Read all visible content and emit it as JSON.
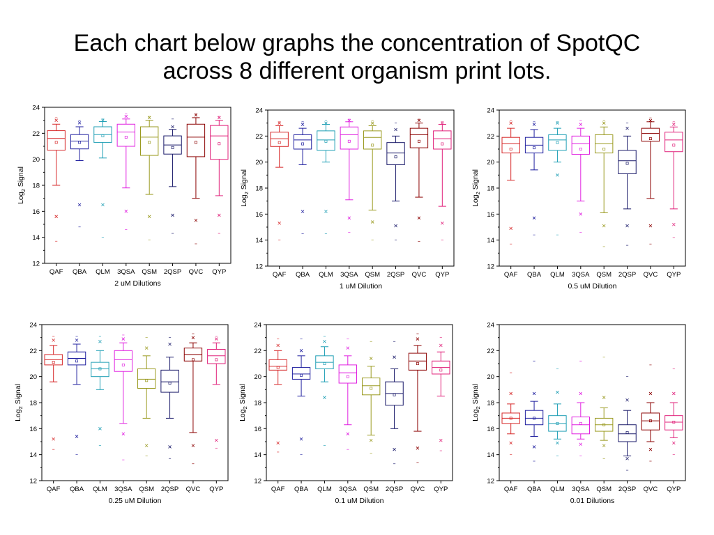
{
  "slide": {
    "title_line1": "Each chart below graphs the concentration of SpotQC",
    "title_line2": "across 8 different organism print lots."
  },
  "colors": {
    "QAF": "#d62728",
    "QBA": "#1f1f9f",
    "QLM": "#1f9fb5",
    "3QSA": "#e020e0",
    "QSM": "#9a9a20",
    "2QSP": "#1a1a6a",
    "QVC": "#8b0000",
    "QYP": "#e0207a"
  },
  "chart_data": [
    {
      "type": "box",
      "xlabel": "2 uM Dilutions",
      "ylabel": "Log2 Signal",
      "ylabel_main": "Log",
      "ylabel_sub": "2",
      "ylabel_tail": " Signal",
      "ylim": [
        12,
        24
      ],
      "yticks": [
        "12",
        "14",
        "16",
        "18",
        "20",
        "22",
        "24"
      ],
      "categories": [
        "QAF",
        "QBA",
        "QLM",
        "3QSA",
        "QSM",
        "2QSP",
        "QVC",
        "QYP"
      ],
      "boxes": [
        {
          "min": 18.0,
          "q1": 20.7,
          "median": 21.6,
          "q3": 22.2,
          "max": 22.7,
          "mean": 21.3,
          "outliers": [
            15.6,
            23.0
          ],
          "extremes": [
            13.7,
            23.2
          ]
        },
        {
          "min": 19.9,
          "q1": 20.8,
          "median": 21.4,
          "q3": 21.9,
          "max": 22.5,
          "mean": 21.3,
          "outliers": [
            16.5,
            22.8
          ],
          "extremes": [
            14.8,
            23.0
          ]
        },
        {
          "min": 20.1,
          "q1": 21.3,
          "median": 21.9,
          "q3": 22.5,
          "max": 22.9,
          "mean": 21.8,
          "outliers": [
            16.5,
            23.0
          ],
          "extremes": [
            14.0,
            23.1
          ]
        },
        {
          "min": 17.8,
          "q1": 21.0,
          "median": 22.1,
          "q3": 22.7,
          "max": 23.1,
          "mean": 21.7,
          "outliers": [
            16.0,
            23.3
          ],
          "extremes": [
            14.6,
            23.5
          ]
        },
        {
          "min": 17.3,
          "q1": 20.3,
          "median": 21.7,
          "q3": 22.5,
          "max": 23.0,
          "mean": 21.3,
          "outliers": [
            15.6,
            23.2
          ],
          "extremes": [
            13.8,
            23.3
          ]
        },
        {
          "min": 17.9,
          "q1": 20.4,
          "median": 21.1,
          "q3": 21.8,
          "max": 22.3,
          "mean": 20.9,
          "outliers": [
            15.7,
            22.5
          ],
          "extremes": [
            14.3,
            23.1
          ]
        },
        {
          "min": 17.0,
          "q1": 20.2,
          "median": 21.7,
          "q3": 22.7,
          "max": 23.2,
          "mean": 21.3,
          "outliers": [
            15.3,
            23.4
          ],
          "extremes": [
            13.5,
            23.5
          ]
        },
        {
          "min": 17.2,
          "q1": 20.0,
          "median": 21.8,
          "q3": 22.6,
          "max": 23.0,
          "mean": 21.2,
          "outliers": [
            15.7,
            23.2
          ],
          "extremes": [
            14.3,
            23.3
          ]
        }
      ]
    },
    {
      "type": "box",
      "xlabel": "1 uM Dilution",
      "ylabel": "Log2 Signal",
      "ylabel_main": "Log",
      "ylabel_sub": "2",
      "ylabel_tail": " Signal",
      "ylim": [
        12,
        24
      ],
      "yticks": [
        "12",
        "14",
        "16",
        "18",
        "20",
        "22",
        "24"
      ],
      "categories": [
        "QAF",
        "QBA",
        "QLM",
        "3QSA",
        "QSM",
        "2QSP",
        "QVC",
        "QYP"
      ],
      "boxes": [
        {
          "min": 19.6,
          "q1": 21.2,
          "median": 21.8,
          "q3": 22.3,
          "max": 22.8,
          "mean": 21.5,
          "outliers": [
            15.3,
            23.0
          ],
          "extremes": [
            14.0,
            23.1
          ]
        },
        {
          "min": 19.8,
          "q1": 21.0,
          "median": 21.7,
          "q3": 22.1,
          "max": 22.6,
          "mean": 21.4,
          "outliers": [
            16.2,
            22.9
          ],
          "extremes": [
            14.5,
            23.1
          ]
        },
        {
          "min": 20.0,
          "q1": 20.9,
          "median": 21.7,
          "q3": 22.4,
          "max": 22.9,
          "mean": 21.6,
          "outliers": [
            16.2,
            23.0
          ],
          "extremes": [
            14.5,
            23.2
          ]
        },
        {
          "min": 17.1,
          "q1": 21.0,
          "median": 22.1,
          "q3": 22.7,
          "max": 23.1,
          "mean": 21.6,
          "outliers": [
            15.7,
            23.2
          ],
          "extremes": [
            14.6,
            23.3
          ]
        },
        {
          "min": 16.3,
          "q1": 21.0,
          "median": 21.9,
          "q3": 22.4,
          "max": 22.8,
          "mean": 21.3,
          "outliers": [
            15.4,
            23.0
          ],
          "extremes": [
            14.0,
            23.2
          ]
        },
        {
          "min": 17.0,
          "q1": 19.8,
          "median": 20.7,
          "q3": 21.5,
          "max": 22.0,
          "mean": 20.4,
          "outliers": [
            15.1,
            22.5
          ],
          "extremes": [
            14.0,
            23.0
          ]
        },
        {
          "min": 17.3,
          "q1": 21.1,
          "median": 22.1,
          "q3": 22.6,
          "max": 23.0,
          "mean": 21.6,
          "outliers": [
            15.7,
            23.2
          ],
          "extremes": [
            13.9,
            23.3
          ]
        },
        {
          "min": 16.6,
          "q1": 21.0,
          "median": 21.8,
          "q3": 22.4,
          "max": 22.9,
          "mean": 21.4,
          "outliers": [
            15.3,
            23.0
          ],
          "extremes": [
            14.0,
            23.1
          ]
        }
      ]
    },
    {
      "type": "box",
      "xlabel": "0.5 uM Dilution",
      "ylabel": "Log2 Signal",
      "ylabel_main": "Log",
      "ylabel_sub": "2",
      "ylabel_tail": " Signal",
      "ylim": [
        12,
        24
      ],
      "yticks": [
        "12",
        "14",
        "16",
        "18",
        "20",
        "22",
        "24"
      ],
      "categories": [
        "QAF",
        "QBA",
        "QLM",
        "3QSA",
        "QSM",
        "2QSP",
        "QVC",
        "QYP"
      ],
      "boxes": [
        {
          "min": 18.6,
          "q1": 20.7,
          "median": 21.4,
          "q3": 21.9,
          "max": 22.6,
          "mean": 21.0,
          "outliers": [
            14.9,
            23.0
          ],
          "extremes": [
            13.7,
            23.2
          ]
        },
        {
          "min": 19.4,
          "q1": 20.7,
          "median": 21.3,
          "q3": 21.9,
          "max": 22.5,
          "mean": 21.1,
          "outliers": [
            15.7,
            22.9
          ],
          "extremes": [
            14.4,
            23.1
          ]
        },
        {
          "min": 20.0,
          "q1": 20.9,
          "median": 21.7,
          "q3": 22.1,
          "max": 22.6,
          "mean": 21.5,
          "outliers": [
            19.0,
            23.0
          ],
          "extremes": [
            14.4,
            23.1
          ]
        },
        {
          "min": 17.0,
          "q1": 20.6,
          "median": 21.4,
          "q3": 22.0,
          "max": 22.6,
          "mean": 21.0,
          "outliers": [
            16.0,
            22.9
          ],
          "extremes": [
            14.6,
            23.2
          ]
        },
        {
          "min": 16.1,
          "q1": 20.7,
          "median": 21.4,
          "q3": 22.1,
          "max": 22.7,
          "mean": 21.0,
          "outliers": [
            15.1,
            23.0
          ],
          "extremes": [
            13.5,
            23.2
          ]
        },
        {
          "min": 16.4,
          "q1": 19.1,
          "median": 20.1,
          "q3": 20.9,
          "max": 22.0,
          "mean": 19.9,
          "outliers": [
            15.1,
            22.6
          ],
          "extremes": [
            13.6,
            23.0
          ]
        },
        {
          "min": 17.2,
          "q1": 21.6,
          "median": 22.2,
          "q3": 22.6,
          "max": 23.1,
          "mean": 21.8,
          "outliers": [
            15.1,
            23.2
          ],
          "extremes": [
            13.7,
            23.4
          ]
        },
        {
          "min": 16.4,
          "q1": 20.8,
          "median": 21.7,
          "q3": 22.3,
          "max": 22.7,
          "mean": 21.3,
          "outliers": [
            15.2,
            22.9
          ],
          "extremes": [
            14.2,
            23.1
          ]
        }
      ]
    },
    {
      "type": "box",
      "xlabel": "0.25 uM Dilution",
      "ylabel": "Log2 Signal",
      "ylabel_main": "Log",
      "ylabel_sub": "2",
      "ylabel_tail": " Signal",
      "ylim": [
        12,
        24
      ],
      "yticks": [
        "12",
        "14",
        "16",
        "18",
        "20",
        "22",
        "24"
      ],
      "categories": [
        "QAF",
        "QBA",
        "QLM",
        "3QSA",
        "QSM",
        "2QSP",
        "QVC",
        "QYP"
      ],
      "boxes": [
        {
          "min": 19.6,
          "q1": 20.9,
          "median": 21.3,
          "q3": 21.7,
          "max": 22.4,
          "mean": 21.1,
          "outliers": [
            15.2,
            22.8
          ],
          "extremes": [
            14.4,
            23.1
          ]
        },
        {
          "min": 19.4,
          "q1": 20.9,
          "median": 21.4,
          "q3": 21.9,
          "max": 22.5,
          "mean": 21.2,
          "outliers": [
            15.4,
            22.8
          ],
          "extremes": [
            14.0,
            23.1
          ]
        },
        {
          "min": 19.0,
          "q1": 20.0,
          "median": 20.6,
          "q3": 21.1,
          "max": 22.0,
          "mean": 20.6,
          "outliers": [
            16.0,
            22.7
          ],
          "extremes": [
            14.7,
            23.1
          ]
        },
        {
          "min": 16.4,
          "q1": 20.4,
          "median": 21.3,
          "q3": 22.0,
          "max": 22.6,
          "mean": 20.9,
          "outliers": [
            15.6,
            22.9
          ],
          "extremes": [
            13.6,
            23.2
          ]
        },
        {
          "min": 16.8,
          "q1": 19.1,
          "median": 19.8,
          "q3": 20.6,
          "max": 21.6,
          "mean": 19.7,
          "outliers": [
            14.7,
            22.2
          ],
          "extremes": [
            13.9,
            23.0
          ]
        },
        {
          "min": 16.8,
          "q1": 18.8,
          "median": 19.6,
          "q3": 20.5,
          "max": 21.5,
          "mean": 19.5,
          "outliers": [
            14.6,
            22.5
          ],
          "extremes": [
            13.7,
            23.0
          ]
        },
        {
          "min": 15.7,
          "q1": 21.2,
          "median": 21.7,
          "q3": 22.2,
          "max": 22.6,
          "mean": 21.3,
          "outliers": [
            14.7,
            23.0
          ],
          "extremes": [
            13.3,
            23.3
          ]
        },
        {
          "min": 19.4,
          "q1": 21.0,
          "median": 21.6,
          "q3": 22.1,
          "max": 22.6,
          "mean": 21.3,
          "outliers": [
            15.1,
            22.9
          ],
          "extremes": [
            14.5,
            23.1
          ]
        }
      ]
    },
    {
      "type": "box",
      "xlabel": "0.1 uM Dilution",
      "ylabel": "Log2 Signal",
      "ylabel_main": "Log",
      "ylabel_sub": "2",
      "ylabel_tail": " Signal",
      "ylim": [
        12,
        24
      ],
      "yticks": [
        "12",
        "14",
        "16",
        "18",
        "20",
        "22",
        "24"
      ],
      "categories": [
        "QAF",
        "QBA",
        "QLM",
        "3QSA",
        "QSM",
        "2QSP",
        "QVC",
        "QYP"
      ],
      "boxes": [
        {
          "min": 19.4,
          "q1": 20.5,
          "median": 20.8,
          "q3": 21.3,
          "max": 22.0,
          "mean": 20.7,
          "outliers": [
            14.9,
            22.4
          ],
          "extremes": [
            14.2,
            22.9
          ]
        },
        {
          "min": 18.5,
          "q1": 19.8,
          "median": 20.2,
          "q3": 20.7,
          "max": 21.6,
          "mean": 20.1,
          "outliers": [
            15.2,
            22.0
          ],
          "extremes": [
            14.0,
            22.9
          ]
        },
        {
          "min": 19.6,
          "q1": 20.6,
          "median": 21.1,
          "q3": 21.6,
          "max": 22.3,
          "mean": 21.0,
          "outliers": [
            18.4,
            22.7
          ],
          "extremes": [
            14.7,
            23.1
          ]
        },
        {
          "min": 16.3,
          "q1": 19.5,
          "median": 20.3,
          "q3": 20.9,
          "max": 21.6,
          "mean": 20.0,
          "outliers": [
            15.6,
            22.2
          ],
          "extremes": [
            14.4,
            22.9
          ]
        },
        {
          "min": 15.5,
          "q1": 18.6,
          "median": 19.3,
          "q3": 19.9,
          "max": 20.8,
          "mean": 19.1,
          "outliers": [
            15.1,
            21.4
          ],
          "extremes": [
            14.1,
            22.7
          ]
        },
        {
          "min": 16.0,
          "q1": 17.8,
          "median": 18.7,
          "q3": 19.6,
          "max": 20.6,
          "mean": 18.6,
          "outliers": [
            14.4,
            21.5
          ],
          "extremes": [
            13.3,
            22.7
          ]
        },
        {
          "min": 15.8,
          "q1": 20.5,
          "median": 21.2,
          "q3": 21.8,
          "max": 22.4,
          "mean": 21.0,
          "outliers": [
            14.5,
            22.9
          ],
          "extremes": [
            13.4,
            23.3
          ]
        },
        {
          "min": 18.5,
          "q1": 20.2,
          "median": 20.7,
          "q3": 21.2,
          "max": 21.9,
          "mean": 20.5,
          "outliers": [
            15.1,
            22.4
          ],
          "extremes": [
            14.3,
            23.0
          ]
        }
      ]
    },
    {
      "type": "box",
      "xlabel": "0.01 Dilutions",
      "ylabel": "Log2 Signal",
      "ylabel_main": "Log",
      "ylabel_sub": "2",
      "ylabel_tail": " Signal",
      "ylim": [
        12,
        24
      ],
      "yticks": [
        "12",
        "14",
        "16",
        "18",
        "20",
        "22",
        "24"
      ],
      "categories": [
        "QAF",
        "QBA",
        "QLM",
        "3QSA",
        "QSM",
        "2QSP",
        "QVC",
        "QYP"
      ],
      "boxes": [
        {
          "min": 15.6,
          "q1": 16.4,
          "median": 16.8,
          "q3": 17.2,
          "max": 17.9,
          "mean": 16.8,
          "outliers": [
            14.9,
            18.7
          ],
          "extremes": [
            14.0,
            20.3
          ]
        },
        {
          "min": 15.4,
          "q1": 16.3,
          "median": 16.8,
          "q3": 17.4,
          "max": 18.1,
          "mean": 16.8,
          "outliers": [
            14.6,
            18.7
          ],
          "extremes": [
            13.5,
            21.2
          ]
        },
        {
          "min": 15.2,
          "q1": 15.8,
          "median": 16.4,
          "q3": 17.0,
          "max": 17.9,
          "mean": 16.4,
          "outliers": [
            14.9,
            18.8
          ],
          "extremes": [
            13.9,
            20.6
          ]
        },
        {
          "min": 15.2,
          "q1": 15.6,
          "median": 16.3,
          "q3": 16.9,
          "max": 18.0,
          "mean": 16.4,
          "outliers": [
            14.8,
            18.7
          ],
          "extremes": [
            13.9,
            21.2
          ]
        },
        {
          "min": 15.1,
          "q1": 15.8,
          "median": 16.3,
          "q3": 16.8,
          "max": 17.6,
          "mean": 16.3,
          "outliers": [
            14.7,
            18.4
          ],
          "extremes": [
            13.7,
            21.5
          ]
        },
        {
          "min": 13.9,
          "q1": 15.0,
          "median": 15.6,
          "q3": 16.3,
          "max": 17.4,
          "mean": 15.7,
          "outliers": [
            13.7,
            18.2
          ],
          "extremes": [
            12.8,
            20.0
          ]
        },
        {
          "min": 15.0,
          "q1": 15.9,
          "median": 16.6,
          "q3": 17.2,
          "max": 18.0,
          "mean": 16.6,
          "outliers": [
            14.4,
            18.7
          ],
          "extremes": [
            13.5,
            20.9
          ]
        },
        {
          "min": 15.3,
          "q1": 15.9,
          "median": 16.5,
          "q3": 17.0,
          "max": 18.0,
          "mean": 16.5,
          "outliers": [
            14.9,
            18.7
          ],
          "extremes": [
            14.0,
            20.6
          ]
        }
      ]
    }
  ]
}
